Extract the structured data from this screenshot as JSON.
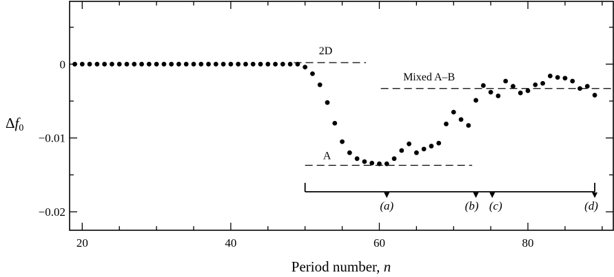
{
  "chart_data": {
    "type": "scatter",
    "xlabel": "Period number, ",
    "xlabel_var": "n",
    "ylabel": "Δ",
    "ylabel_var": "f",
    "ylabel_sub": "0",
    "xlim": [
      18.3,
      91.5
    ],
    "ylim": [
      -0.0225,
      0.0085
    ],
    "xticks": [
      20,
      40,
      60,
      80
    ],
    "xtick_labels": [
      "20",
      "40",
      "60",
      "80"
    ],
    "yticks": [
      0,
      -0.01,
      -0.02
    ],
    "ytick_labels": [
      "0",
      "−0.01",
      "−0.02"
    ],
    "grid": false,
    "series": [
      {
        "marker": "filled-circle",
        "color": "#000000",
        "x": [
          19,
          20,
          21,
          22,
          23,
          24,
          25,
          26,
          27,
          28,
          29,
          30,
          31,
          32,
          33,
          34,
          35,
          36,
          37,
          38,
          39,
          40,
          41,
          42,
          43,
          44,
          45,
          46,
          47,
          48,
          49,
          50,
          51,
          52,
          53,
          54,
          55,
          56,
          57,
          58,
          59,
          60,
          61,
          62,
          63,
          64,
          65,
          66,
          67,
          68,
          69,
          70,
          71,
          72,
          73,
          74,
          75,
          76,
          77,
          78,
          79,
          80,
          81,
          82,
          83,
          84,
          85,
          86,
          87,
          88,
          89
        ],
        "y": [
          0,
          0,
          0,
          0,
          0,
          0,
          0,
          0,
          0,
          0,
          0,
          0,
          0,
          0,
          0,
          0,
          0,
          0,
          0,
          0,
          0,
          0,
          0,
          0,
          0,
          0,
          0,
          0,
          0,
          0,
          0,
          -0.0004,
          -0.0013,
          -0.0028,
          -0.0052,
          -0.008,
          -0.0105,
          -0.012,
          -0.0128,
          -0.0132,
          -0.0134,
          -0.0135,
          -0.0135,
          -0.0128,
          -0.0117,
          -0.0108,
          -0.012,
          -0.0115,
          -0.0111,
          -0.0107,
          -0.0081,
          -0.0065,
          -0.0075,
          -0.0083,
          -0.0049,
          -0.0029,
          -0.0038,
          -0.0043,
          -0.0023,
          -0.003,
          -0.0039,
          -0.0036,
          -0.0028,
          -0.0026,
          -0.0016,
          -0.0018,
          -0.0019,
          -0.0023,
          -0.0033,
          -0.003,
          -0.0042
        ]
      }
    ],
    "reference_lines": [
      {
        "label": "2D",
        "y": 0.0002,
        "x_start": 48.5,
        "x_end": 58.2,
        "style": "dashed"
      },
      {
        "label": "Mixed A–B",
        "y": -0.0033,
        "x_start": 60.2,
        "x_end": 91.5,
        "style": "dashed"
      },
      {
        "label": "A",
        "y": -0.0137,
        "x_start": 50,
        "x_end": 72.5,
        "style": "dashed"
      }
    ],
    "time_bracket": {
      "x_start": 50,
      "x_end": 89,
      "markers": [
        {
          "label": "(a)",
          "x": 61
        },
        {
          "label": "(b)",
          "x": 73
        },
        {
          "label": "(c)",
          "x": 75.2
        },
        {
          "label": "(d)",
          "x": 89
        }
      ]
    }
  }
}
